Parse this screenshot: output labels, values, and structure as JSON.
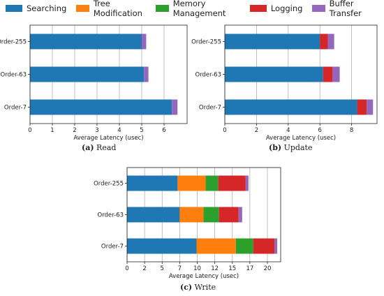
{
  "legend": [
    {
      "name": "Searching",
      "color": "#1f77b4"
    },
    {
      "name": "Tree Modification",
      "color": "#ff7f0e"
    },
    {
      "name": "Memory Management",
      "color": "#2ca02c"
    },
    {
      "name": "Logging",
      "color": "#d62728"
    },
    {
      "name": "Buffer Transfer",
      "color": "#9467bd"
    }
  ],
  "captions": {
    "read": {
      "letter": "(a)",
      "text": " Read"
    },
    "update": {
      "letter": "(b)",
      "text": " Update"
    },
    "write": {
      "letter": "(c)",
      "text": " Write"
    }
  },
  "chart_data": [
    {
      "type": "bar",
      "orientation": "horizontal",
      "stacked": true,
      "title": "(a) Read",
      "xlabel": "Average Latency (usec)",
      "categories": [
        "Order-255",
        "Order-63",
        "Order-7"
      ],
      "xlim": [
        0,
        7
      ],
      "xticks": [
        0,
        1,
        2,
        3,
        4,
        5,
        6
      ],
      "grid": true,
      "series": [
        {
          "name": "Searching",
          "values": [
            5.0,
            5.1,
            6.35
          ]
        },
        {
          "name": "Tree Modification",
          "values": [
            0,
            0,
            0
          ]
        },
        {
          "name": "Memory Management",
          "values": [
            0,
            0,
            0
          ]
        },
        {
          "name": "Logging",
          "values": [
            0,
            0,
            0
          ]
        },
        {
          "name": "Buffer Transfer",
          "values": [
            0.2,
            0.2,
            0.25
          ]
        }
      ]
    },
    {
      "type": "bar",
      "orientation": "horizontal",
      "stacked": true,
      "title": "(b) Update",
      "xlabel": "Average Latency (usec)",
      "categories": [
        "Order-255",
        "Order-63",
        "Order-7"
      ],
      "xlim": [
        0,
        10
      ],
      "xticks": [
        0,
        2,
        4,
        6,
        8
      ],
      "grid": true,
      "series": [
        {
          "name": "Searching",
          "values": [
            6.0,
            6.2,
            8.35
          ]
        },
        {
          "name": "Tree Modification",
          "values": [
            0,
            0,
            0
          ]
        },
        {
          "name": "Memory Management",
          "values": [
            0,
            0,
            0
          ]
        },
        {
          "name": "Logging",
          "values": [
            0.5,
            0.6,
            0.6
          ]
        },
        {
          "name": "Buffer Transfer",
          "values": [
            0.4,
            0.45,
            0.4
          ]
        }
      ]
    },
    {
      "type": "bar",
      "orientation": "horizontal",
      "stacked": true,
      "title": "(c) Write",
      "xlabel": "Average Latency (usec)",
      "categories": [
        "Order-255",
        "Order-63",
        "Order-7"
      ],
      "xlim": [
        0,
        22
      ],
      "xticks": [
        0,
        2,
        5,
        7,
        10,
        12,
        15,
        17,
        20
      ],
      "xtick_values": [
        0,
        2.5,
        5,
        7.5,
        10,
        12.5,
        15,
        17.5,
        20
      ],
      "grid": true,
      "series": [
        {
          "name": "Searching",
          "values": [
            7.2,
            7.5,
            9.9
          ]
        },
        {
          "name": "Tree Modification",
          "values": [
            4.0,
            3.4,
            5.6
          ]
        },
        {
          "name": "Memory Management",
          "values": [
            1.8,
            2.2,
            2.5
          ]
        },
        {
          "name": "Logging",
          "values": [
            3.9,
            2.8,
            3.0
          ]
        },
        {
          "name": "Buffer Transfer",
          "values": [
            0.4,
            0.5,
            0.4
          ]
        }
      ]
    }
  ]
}
